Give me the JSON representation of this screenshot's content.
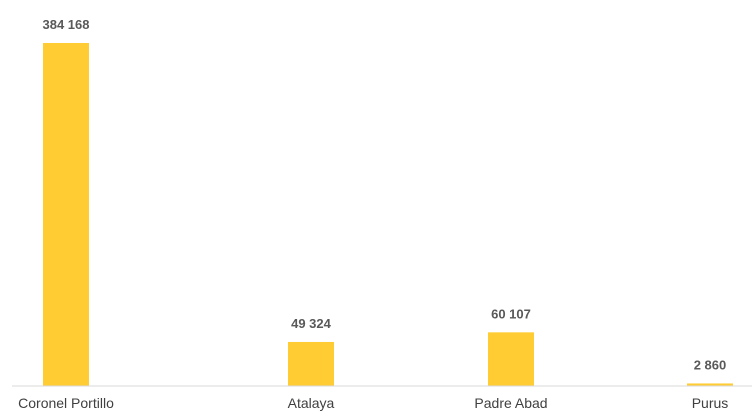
{
  "chart_data": {
    "type": "bar",
    "categories": [
      "Coronel Portillo",
      "Atalaya",
      "Padre Abad",
      "Purus"
    ],
    "values": [
      384168,
      49324,
      60107,
      2860
    ],
    "value_labels": [
      "384 168",
      "49 324",
      "60 107",
      "2 860"
    ],
    "title": "",
    "xlabel": "",
    "ylabel": "",
    "ylim": [
      0,
      384168
    ],
    "grid": false,
    "legend": "none",
    "colors": {
      "bar": "#FFCC33",
      "axis": "#D9D9D9",
      "value_label": "#595959",
      "category_label": "#404040"
    }
  }
}
